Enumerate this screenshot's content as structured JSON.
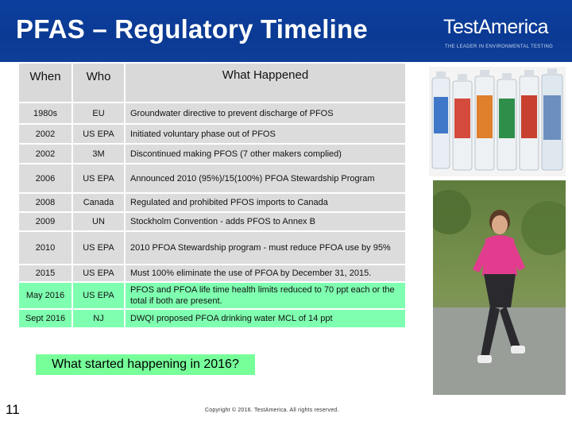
{
  "title": "PFAS – Regulatory Timeline",
  "logo": {
    "text": "TestAmerica",
    "tagline": "THE LEADER IN ENVIRONMENTAL TESTING"
  },
  "table": {
    "headers": {
      "when": "When",
      "who": "Who",
      "what": "What Happened"
    },
    "rows": [
      {
        "when": "1980s",
        "who": "EU",
        "what": "Groundwater directive to prevent discharge of PFOS"
      },
      {
        "when": "2002",
        "who": "US EPA",
        "what": "Initiated voluntary phase out of PFOS"
      },
      {
        "when": "2002",
        "who": "3M",
        "what": "Discontinued making PFOS (7 other makers complied)"
      },
      {
        "when": "2006",
        "who": "US EPA",
        "what": "Announced 2010 (95%)/15(100%) PFOA Stewardship Program"
      },
      {
        "when": "2008",
        "who": "Canada",
        "what": "Regulated and prohibited PFOS imports to Canada"
      },
      {
        "when": "2009",
        "who": "UN",
        "what": "Stockholm Convention - adds PFOS to Annex B"
      },
      {
        "when": "2010",
        "who": "US EPA",
        "what": "2010 PFOA Stewardship program - must reduce PFOA use by 95%"
      },
      {
        "when": "2015",
        "who": "US EPA",
        "what": "Must 100% eliminate the use of PFOA by December 31, 2015."
      },
      {
        "when": "May 2016",
        "who": "US EPA",
        "what": "PFOS and PFOA life time health limits reduced to 70 ppt each or the total if both are present."
      },
      {
        "when": "Sept 2016",
        "who": "NJ",
        "what": "DWQI proposed PFOA drinking water MCL of 14 ppt"
      }
    ]
  },
  "question": "What started happening in 2016?",
  "slide_number": "11",
  "copyright": "Copyright © 2016. TestAmerica. All rights reserved.",
  "colors": {
    "banner": "#0b3c96",
    "table_cell": "#dcdcdc",
    "highlight": "#7fffb0"
  }
}
